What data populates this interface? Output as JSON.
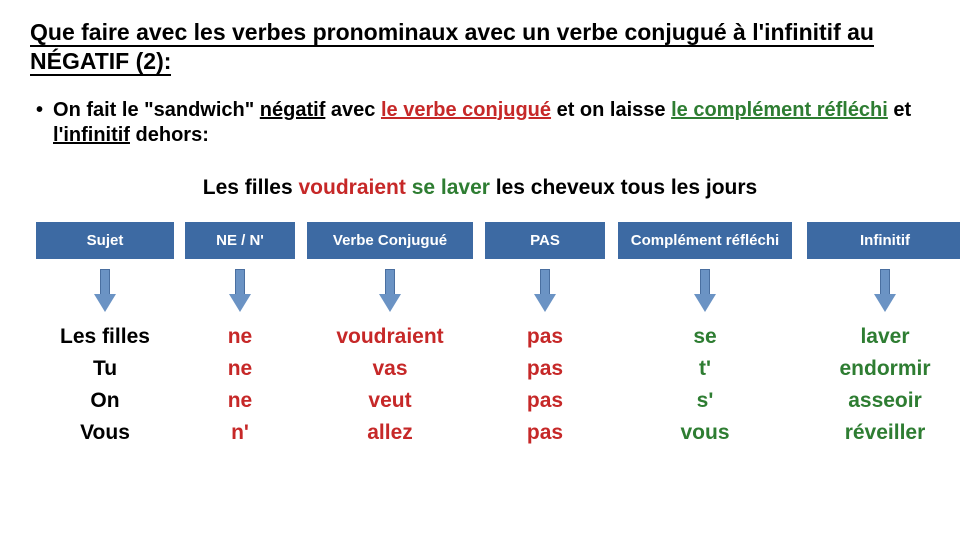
{
  "title": "Que faire avec les verbes pronominaux avec un verbe conjugué à l'infinitif au NÉGATIF (2):",
  "bullet": {
    "pre": "On fait le \"sandwich\" ",
    "negatif": "négatif",
    "mid1": " avec ",
    "verbe_conj": "le verbe conjugué",
    "mid2": " et on laisse ",
    "complement": "le complément réfléchi",
    "mid3": " et ",
    "infinitif": "l'infinitif",
    "end": " dehors:"
  },
  "example": {
    "a": "Les filles ",
    "b": "voudraient",
    "c": " se laver ",
    "d": "les cheveux tous les jours"
  },
  "headers": [
    "Sujet",
    "NE / N'",
    "Verbe Conjugué",
    "PAS",
    "Complément réfléchi",
    "Infinitif"
  ],
  "rows": [
    {
      "sujet": "Les filles",
      "ne": "ne",
      "vc": "voudraient",
      "pas": "pas",
      "cr": "se",
      "inf": "laver"
    },
    {
      "sujet": "Tu",
      "ne": "ne",
      "vc": "vas",
      "pas": "pas",
      "cr": "t'",
      "inf": "endormir"
    },
    {
      "sujet": "On",
      "ne": "ne",
      "vc": "veut",
      "pas": "pas",
      "cr": "s'",
      "inf": "asseoir"
    },
    {
      "sujet": "Vous",
      "ne": "n'",
      "vc": "allez",
      "pas": "pas",
      "cr": "vous",
      "inf": "réveiller"
    }
  ],
  "colors": {
    "header_bg": "#3d6aa3",
    "arrow_fill": "#6b93c4",
    "green": "#2e7d32",
    "red": "#c62828",
    "black": "#000000",
    "white": "#ffffff"
  }
}
